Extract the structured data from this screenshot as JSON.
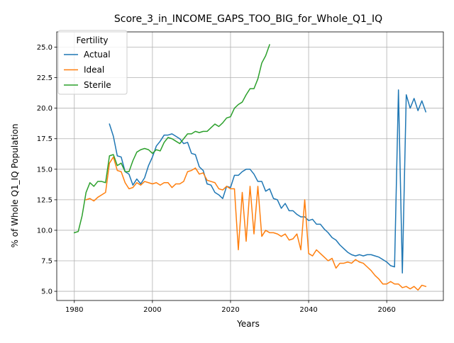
{
  "chart_data": {
    "type": "line",
    "title": "Score_3_in_INCOME_GAPS_TOO_BIG_for_Whole_Q1_IQ",
    "xlabel": "Years",
    "ylabel": "% of Whole Q1_IQ Population",
    "xlim": [
      1975.5,
      2074.5
    ],
    "ylim": [
      4.25,
      26.25
    ],
    "xticks": [
      1980,
      2000,
      2020,
      2040,
      2060
    ],
    "yticks": [
      5.0,
      7.5,
      10.0,
      12.5,
      15.0,
      17.5,
      20.0,
      22.5,
      25.0
    ],
    "ytick_labels": [
      "5.0",
      "7.5",
      "10.0",
      "12.5",
      "15.0",
      "17.5",
      "20.0",
      "22.5",
      "25.0"
    ],
    "grid": true,
    "legend": {
      "title": "Fertility",
      "placement": "top-left"
    },
    "series": [
      {
        "name": "Actual",
        "color": "#1f77b4",
        "x": [
          1989,
          1990,
          1991,
          1992,
          1993,
          1994,
          1995,
          1996,
          1997,
          1998,
          1999,
          2000,
          2001,
          2002,
          2003,
          2004,
          2005,
          2006,
          2007,
          2008,
          2009,
          2010,
          2011,
          2012,
          2013,
          2014,
          2015,
          2016,
          2017,
          2018,
          2019,
          2020,
          2021,
          2022,
          2023,
          2024,
          2025,
          2026,
          2027,
          2028,
          2029,
          2030,
          2031,
          2032,
          2033,
          2034,
          2035,
          2036,
          2037,
          2038,
          2039,
          2040,
          2041,
          2042,
          2043,
          2044,
          2045,
          2046,
          2047,
          2048,
          2049,
          2050,
          2051,
          2052,
          2053,
          2054,
          2055,
          2056,
          2057,
          2058,
          2059,
          2060,
          2061,
          2062,
          2063,
          2064,
          2065,
          2066,
          2067,
          2068,
          2069,
          2070
        ],
        "values": [
          18.7,
          17.7,
          16.1,
          16.0,
          14.8,
          14.6,
          13.7,
          14.2,
          13.8,
          14.3,
          15.3,
          16.0,
          16.9,
          17.3,
          17.8,
          17.8,
          17.9,
          17.7,
          17.5,
          17.1,
          17.2,
          16.3,
          16.2,
          15.2,
          14.9,
          13.8,
          13.7,
          13.1,
          12.9,
          12.6,
          13.6,
          13.5,
          14.5,
          14.5,
          14.8,
          15.0,
          15.0,
          14.6,
          14.0,
          14.0,
          13.2,
          13.4,
          12.6,
          12.5,
          11.8,
          12.2,
          11.6,
          11.6,
          11.3,
          11.1,
          11.1,
          10.8,
          10.9,
          10.5,
          10.5,
          10.1,
          9.8,
          9.4,
          9.2,
          8.8,
          8.5,
          8.2,
          8.0,
          7.9,
          8.0,
          7.9,
          8.0,
          8.0,
          7.9,
          7.8,
          7.6,
          7.4,
          7.1,
          7.0,
          21.5,
          6.5,
          21.1,
          20.0,
          20.8,
          19.8,
          20.6,
          19.7
        ]
      },
      {
        "name": "Ideal",
        "color": "#ff7f0e",
        "x": [
          1983,
          1984,
          1985,
          1986,
          1987,
          1988,
          1989,
          1990,
          1991,
          1992,
          1993,
          1994,
          1995,
          1996,
          1997,
          1998,
          1999,
          2000,
          2001,
          2002,
          2003,
          2004,
          2005,
          2006,
          2007,
          2008,
          2009,
          2010,
          2011,
          2012,
          2013,
          2014,
          2015,
          2016,
          2017,
          2018,
          2019,
          2020,
          2021,
          2022,
          2023,
          2024,
          2025,
          2026,
          2027,
          2028,
          2029,
          2030,
          2031,
          2032,
          2033,
          2034,
          2035,
          2036,
          2037,
          2038,
          2039,
          2040,
          2041,
          2042,
          2043,
          2044,
          2045,
          2046,
          2047,
          2048,
          2049,
          2050,
          2051,
          2052,
          2053,
          2054,
          2055,
          2056,
          2057,
          2058,
          2059,
          2060,
          2061,
          2062,
          2063,
          2064,
          2065,
          2066,
          2067,
          2068,
          2069,
          2070
        ],
        "values": [
          12.5,
          12.6,
          12.4,
          12.7,
          12.9,
          13.1,
          15.5,
          16.0,
          14.9,
          14.8,
          13.9,
          13.4,
          13.5,
          13.9,
          13.7,
          14.0,
          13.9,
          13.8,
          13.9,
          13.7,
          13.9,
          13.9,
          13.5,
          13.8,
          13.8,
          14.0,
          14.8,
          14.9,
          15.1,
          14.6,
          14.7,
          14.1,
          14.0,
          13.9,
          13.4,
          13.3,
          13.6,
          13.4,
          13.4,
          8.4,
          13.1,
          9.1,
          13.6,
          9.7,
          13.6,
          9.5,
          10.0,
          9.8,
          9.8,
          9.7,
          9.5,
          9.7,
          9.2,
          9.3,
          9.7,
          8.4,
          12.5,
          8.1,
          7.9,
          8.4,
          8.1,
          7.8,
          7.5,
          7.7,
          6.9,
          7.3,
          7.3,
          7.4,
          7.3,
          7.6,
          7.4,
          7.3,
          7.0,
          6.7,
          6.3,
          6.0,
          5.6,
          5.6,
          5.8,
          5.6,
          5.6,
          5.3,
          5.4,
          5.2,
          5.4,
          5.1,
          5.5,
          5.4
        ]
      },
      {
        "name": "Sterile",
        "color": "#2ca02c",
        "x": [
          1980,
          1981,
          1982,
          1983,
          1984,
          1985,
          1986,
          1987,
          1988,
          1989,
          1990,
          1991,
          1992,
          1993,
          1994,
          1995,
          1996,
          1997,
          1998,
          1999,
          2000,
          2001,
          2002,
          2003,
          2004,
          2005,
          2006,
          2007,
          2008,
          2009,
          2010,
          2011,
          2012,
          2013,
          2014,
          2015,
          2016,
          2017,
          2018,
          2019,
          2020,
          2021,
          2022,
          2023,
          2024,
          2025,
          2026,
          2027,
          2028,
          2029,
          2030
        ],
        "values": [
          9.8,
          9.9,
          11.2,
          13.1,
          13.9,
          13.6,
          14.0,
          14.0,
          13.9,
          16.1,
          16.2,
          15.3,
          15.5,
          14.8,
          14.8,
          15.7,
          16.4,
          16.6,
          16.7,
          16.6,
          16.3,
          16.6,
          16.5,
          17.2,
          17.6,
          17.5,
          17.3,
          17.1,
          17.5,
          17.9,
          17.9,
          18.1,
          18.0,
          18.1,
          18.1,
          18.4,
          18.7,
          18.5,
          18.8,
          19.2,
          19.3,
          20.0,
          20.3,
          20.5,
          21.1,
          21.6,
          21.6,
          22.4,
          23.7,
          24.3,
          25.2
        ]
      }
    ]
  }
}
